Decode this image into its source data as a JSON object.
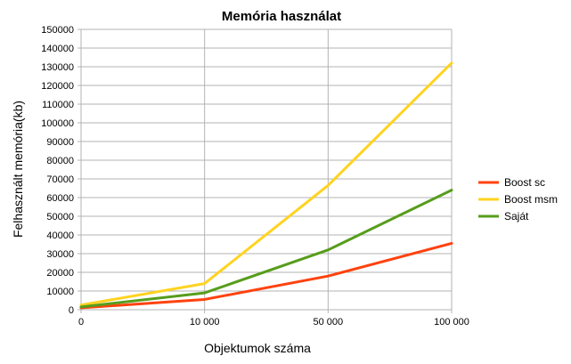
{
  "chart_data": {
    "type": "line",
    "title": "Memória használat",
    "xlabel": "Objektumok száma",
    "ylabel": "Felhasznált memória(kb)",
    "categories": [
      "0",
      "10 000",
      "50 000",
      "100 000"
    ],
    "ylim": [
      0,
      150000
    ],
    "ytick_step": 10000,
    "grid": true,
    "legend_position": "right",
    "series": [
      {
        "name": "Boost sc",
        "color": "#ff420e",
        "values": [
          1000,
          5500,
          18000,
          35500
        ]
      },
      {
        "name": "Boost msm",
        "color": "#ffd320",
        "values": [
          2500,
          14000,
          66500,
          132000
        ]
      },
      {
        "name": "Saját",
        "color": "#579d1c",
        "values": [
          1500,
          9000,
          32000,
          64000
        ]
      }
    ]
  }
}
